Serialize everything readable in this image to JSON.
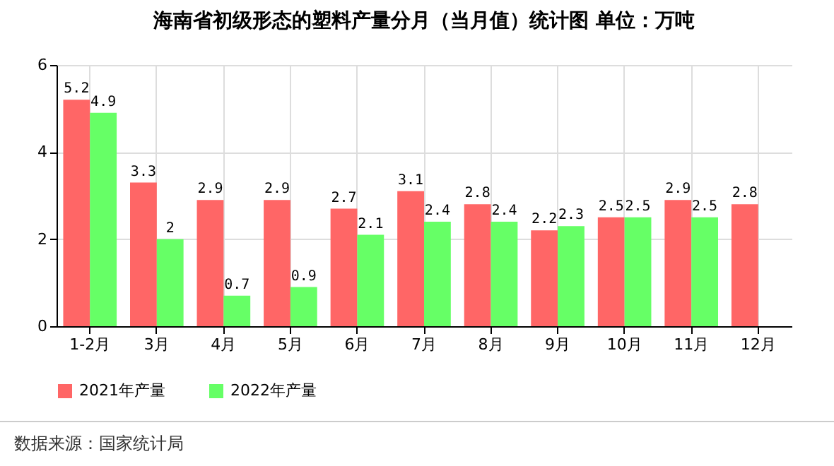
{
  "chart_data": {
    "type": "bar",
    "title": "海南省初级形态的塑料产量分月（当月值）统计图 单位：万吨",
    "categories": [
      "1-2月",
      "3月",
      "4月",
      "5月",
      "6月",
      "7月",
      "8月",
      "9月",
      "10月",
      "11月",
      "12月"
    ],
    "series": [
      {
        "name": "2021年产量",
        "color": "#ff6666",
        "values": [
          5.2,
          3.3,
          2.9,
          2.9,
          2.7,
          3.1,
          2.8,
          2.2,
          2.5,
          2.9,
          2.8
        ]
      },
      {
        "name": "2022年产量",
        "color": "#66ff66",
        "values": [
          4.9,
          2,
          0.7,
          0.9,
          2.1,
          2.4,
          2.4,
          2.3,
          2.5,
          2.5,
          null
        ]
      }
    ],
    "ylim": [
      0,
      6
    ],
    "yticks": [
      0,
      2,
      4,
      6
    ],
    "grid": true,
    "legend": "bottom",
    "data_labels": true,
    "annotations": [
      "数据来源：国家统计局"
    ]
  }
}
